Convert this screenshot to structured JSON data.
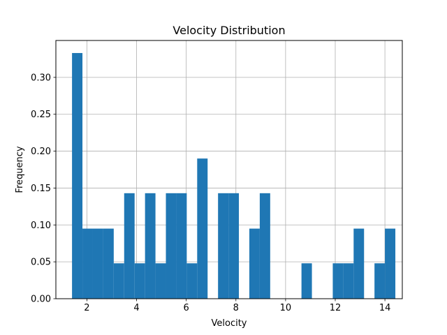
{
  "chart_data": {
    "type": "bar",
    "title": "Velocity Distribution",
    "xlabel": "Velocity",
    "ylabel": "Frequency",
    "xlim": [
      0.75,
      14.7
    ],
    "ylim": [
      0,
      0.35
    ],
    "grid": true,
    "bar_color": "#1f77b4",
    "x_ticks": [
      2,
      4,
      6,
      8,
      10,
      12,
      14
    ],
    "y_ticks": [
      0.0,
      0.05,
      0.1,
      0.15,
      0.2,
      0.25,
      0.3
    ],
    "y_tick_labels": [
      "0.00",
      "0.05",
      "0.10",
      "0.15",
      "0.20",
      "0.25",
      "0.30"
    ],
    "bin_start": 1.4,
    "bin_width": 0.42,
    "values": [
      0.333,
      0.095,
      0.095,
      0.095,
      0.048,
      0.143,
      0.048,
      0.143,
      0.048,
      0.143,
      0.143,
      0.048,
      0.19,
      0,
      0.143,
      0.143,
      0,
      0.095,
      0.143,
      0,
      0,
      0,
      0.048,
      0,
      0,
      0.048,
      0.048,
      0.095,
      0,
      0.048,
      0.095
    ]
  }
}
